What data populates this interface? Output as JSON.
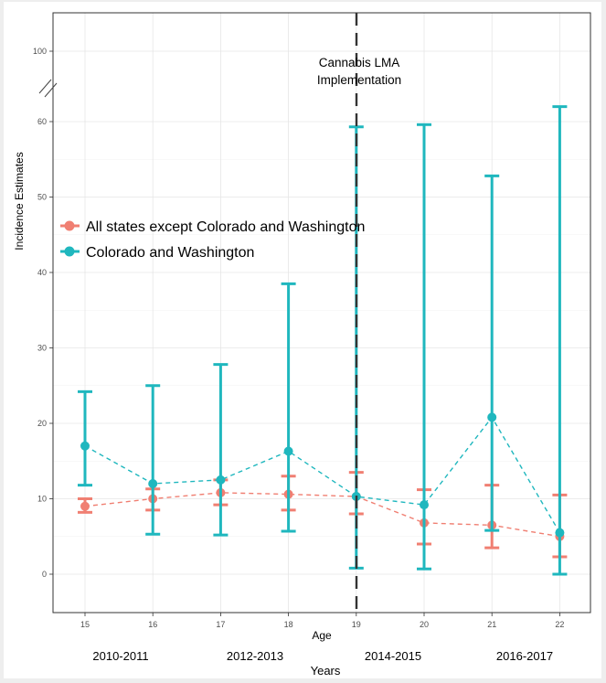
{
  "chart_data": {
    "type": "line",
    "ylabel": "Incidence Estimates",
    "xlabel": "Age",
    "x_categories": [
      "15",
      "16",
      "17",
      "18",
      "19",
      "20",
      "21",
      "22"
    ],
    "y_ticks": [
      "0",
      "10",
      "20",
      "30",
      "40",
      "50",
      "60",
      "100"
    ],
    "y_ticks_values": [
      0,
      10,
      20,
      30,
      40,
      50,
      60,
      100
    ],
    "axis_break": "60 to 100",
    "annotation": {
      "lines": [
        "Cannabis LMA",
        "Implementation"
      ],
      "at_x": "19"
    },
    "year_groups": [
      "2010-2011",
      "2012-2013",
      "2014-2015",
      "2016-2017"
    ],
    "year_axis_title": "Years",
    "legend_position": "left",
    "grid": true,
    "series": [
      {
        "name": "All states except Colorado and Washington",
        "color": "#f07f72",
        "x": [
          "15",
          "16",
          "17",
          "18",
          "19",
          "20",
          "21",
          "22"
        ],
        "values": [
          9.0,
          10.0,
          10.8,
          10.6,
          10.3,
          6.8,
          6.5,
          5.0
        ],
        "ci_low": [
          8.2,
          8.5,
          9.2,
          8.5,
          8.0,
          4.0,
          3.5,
          2.3
        ],
        "ci_high": [
          10.0,
          11.3,
          12.5,
          13.0,
          13.5,
          11.2,
          11.8,
          10.5
        ]
      },
      {
        "name": "Colorado and Washington",
        "color": "#1fb7be",
        "x": [
          "15",
          "16",
          "17",
          "18",
          "19",
          "20",
          "21",
          "22"
        ],
        "values": [
          17.0,
          12.0,
          12.5,
          16.3,
          10.3,
          9.2,
          20.8,
          5.5
        ],
        "ci_low": [
          11.8,
          5.3,
          5.2,
          5.7,
          0.8,
          0.7,
          5.8,
          0.0
        ],
        "ci_high": [
          24.2,
          25.0,
          27.8,
          38.5,
          59.3,
          59.6,
          52.8,
          68.5
        ]
      }
    ]
  }
}
